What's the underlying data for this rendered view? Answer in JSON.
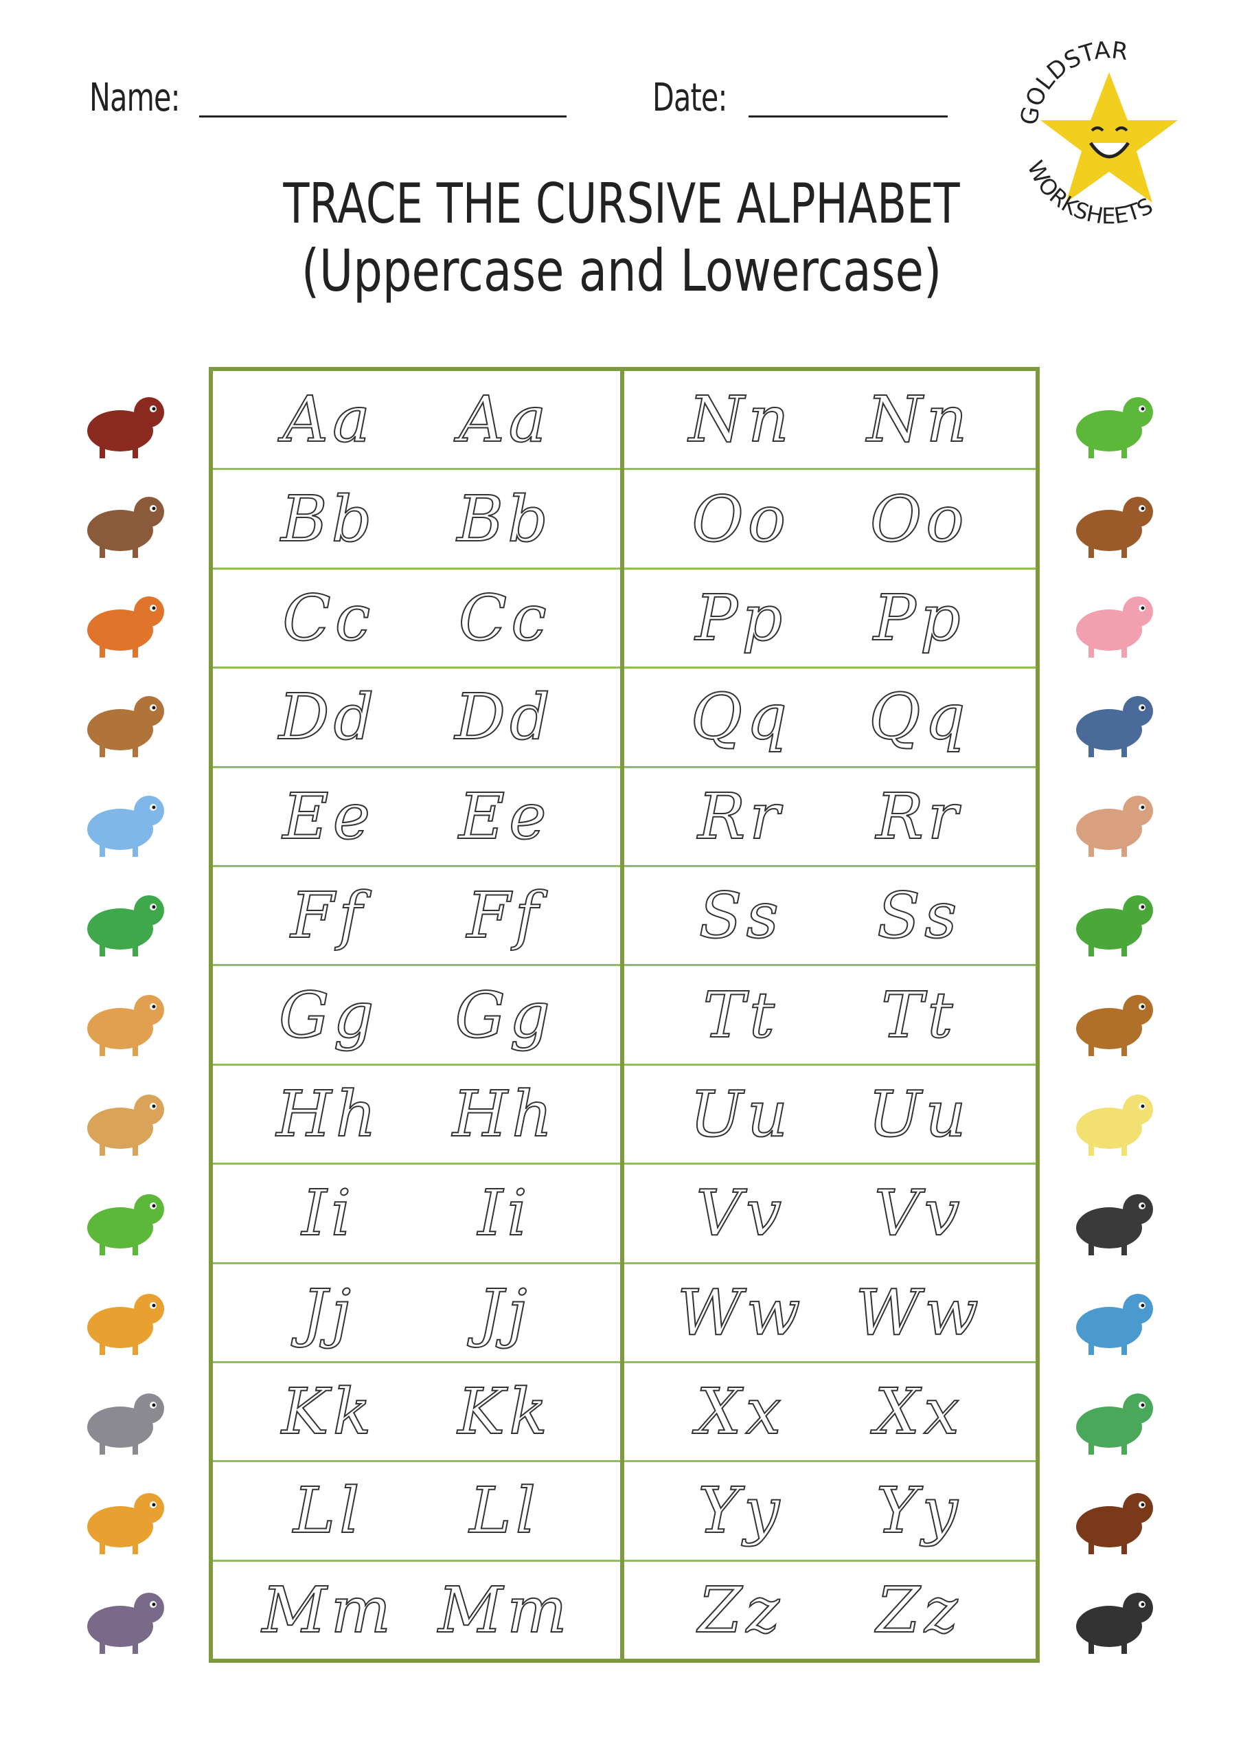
{
  "header": {
    "name_label": "Name:",
    "date_label": "Date:"
  },
  "title": {
    "line1": "TRACE THE CURSIVE ALPHABET",
    "line2": "(Uppercase and Lowercase)"
  },
  "logo": {
    "text_top": "GOLDSTAR",
    "text_bottom": "WORKSHEETS",
    "star_color": "#f2cf1f"
  },
  "accent_color": "#7f9a3c",
  "left_rows": [
    {
      "upper": "A",
      "lower": "a",
      "animal": "ant",
      "color": "#8b2a1e"
    },
    {
      "upper": "B",
      "lower": "b",
      "animal": "bird-sparrow",
      "color": "#8a5a3a"
    },
    {
      "upper": "C",
      "lower": "c",
      "animal": "cat-fox",
      "color": "#e0742a"
    },
    {
      "upper": "D",
      "lower": "d",
      "animal": "dog",
      "color": "#b0743a"
    },
    {
      "upper": "E",
      "lower": "e",
      "animal": "elephant",
      "color": "#7fb8e8"
    },
    {
      "upper": "F",
      "lower": "f",
      "animal": "frog",
      "color": "#3ea84a"
    },
    {
      "upper": "G",
      "lower": "g",
      "animal": "goat",
      "color": "#e0a050"
    },
    {
      "upper": "H",
      "lower": "h",
      "animal": "horse",
      "color": "#d9a35a"
    },
    {
      "upper": "I",
      "lower": "i",
      "animal": "iguana",
      "color": "#5cb83a"
    },
    {
      "upper": "J",
      "lower": "j",
      "animal": "jaguar",
      "color": "#e8a030"
    },
    {
      "upper": "K",
      "lower": "k",
      "animal": "koala",
      "color": "#8a8a90"
    },
    {
      "upper": "L",
      "lower": "l",
      "animal": "lion",
      "color": "#e8a030"
    },
    {
      "upper": "M",
      "lower": "m",
      "animal": "mole",
      "color": "#7a6a8a"
    }
  ],
  "right_rows": [
    {
      "upper": "N",
      "lower": "n",
      "animal": "newt-lizard",
      "color": "#5cb83a"
    },
    {
      "upper": "O",
      "lower": "o",
      "animal": "owl",
      "color": "#9a5a2a"
    },
    {
      "upper": "P",
      "lower": "p",
      "animal": "pig",
      "color": "#f2a0b0"
    },
    {
      "upper": "Q",
      "lower": "q",
      "animal": "quail",
      "color": "#4a6a9a"
    },
    {
      "upper": "R",
      "lower": "r",
      "animal": "rabbit",
      "color": "#d9a080"
    },
    {
      "upper": "S",
      "lower": "s",
      "animal": "snake",
      "color": "#4aa83a"
    },
    {
      "upper": "T",
      "lower": "t",
      "animal": "turtle",
      "color": "#b0702a"
    },
    {
      "upper": "U",
      "lower": "u",
      "animal": "unicorn",
      "color": "#f2e070"
    },
    {
      "upper": "V",
      "lower": "v",
      "animal": "vulture",
      "color": "#3a3a3a"
    },
    {
      "upper": "W",
      "lower": "w",
      "animal": "whale",
      "color": "#4a9ad0"
    },
    {
      "upper": "X",
      "lower": "x",
      "animal": "hummingbird",
      "color": "#4aa85a"
    },
    {
      "upper": "Y",
      "lower": "y",
      "animal": "yak",
      "color": "#7a3a1a"
    },
    {
      "upper": "Z",
      "lower": "z",
      "animal": "zebra",
      "color": "#333333"
    }
  ]
}
